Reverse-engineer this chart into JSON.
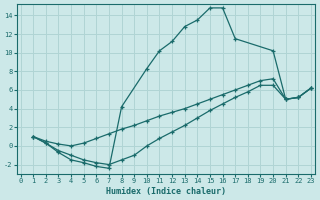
{
  "xlabel": "Humidex (Indice chaleur)",
  "bg_color": "#cce8e8",
  "grid_color": "#b0d4d4",
  "line_color": "#1a6b6b",
  "xlim": [
    -0.3,
    23.3
  ],
  "ylim": [
    -3.0,
    15.2
  ],
  "xticks": [
    0,
    1,
    2,
    3,
    4,
    5,
    6,
    7,
    8,
    9,
    10,
    11,
    12,
    13,
    14,
    15,
    16,
    17,
    18,
    19,
    20,
    21,
    22,
    23
  ],
  "yticks": [
    -2,
    0,
    2,
    4,
    6,
    8,
    10,
    12,
    14
  ],
  "line1_x": [
    1,
    2,
    3,
    4,
    5,
    6,
    7,
    8,
    10,
    11,
    12,
    13,
    14,
    15,
    16,
    17,
    20,
    21,
    22,
    23
  ],
  "line1_y": [
    1.0,
    0.3,
    -0.7,
    -1.5,
    -1.8,
    -2.2,
    -2.4,
    4.2,
    8.3,
    10.2,
    11.2,
    12.8,
    13.5,
    14.8,
    14.8,
    11.5,
    10.2,
    5.0,
    5.2,
    6.2
  ],
  "line2_x": [
    1,
    2,
    3,
    4,
    5,
    6,
    7,
    8,
    9,
    10,
    11,
    12,
    13,
    14,
    15,
    16,
    17,
    18,
    19,
    20,
    21,
    22,
    23
  ],
  "line2_y": [
    1.0,
    0.5,
    0.2,
    0.0,
    0.3,
    0.8,
    1.3,
    1.8,
    2.2,
    2.7,
    3.2,
    3.6,
    4.0,
    4.5,
    5.0,
    5.5,
    6.0,
    6.5,
    7.0,
    7.2,
    5.0,
    5.2,
    6.2
  ],
  "line3_x": [
    1,
    2,
    3,
    4,
    5,
    6,
    7,
    8,
    9,
    10,
    11,
    12,
    13,
    14,
    15,
    16,
    17,
    18,
    19,
    20,
    21,
    22,
    23
  ],
  "line3_y": [
    1.0,
    0.3,
    -0.5,
    -1.0,
    -1.5,
    -1.8,
    -2.0,
    -1.5,
    -1.0,
    0.0,
    0.8,
    1.5,
    2.2,
    3.0,
    3.8,
    4.5,
    5.2,
    5.8,
    6.5,
    6.5,
    5.0,
    5.2,
    6.2
  ]
}
